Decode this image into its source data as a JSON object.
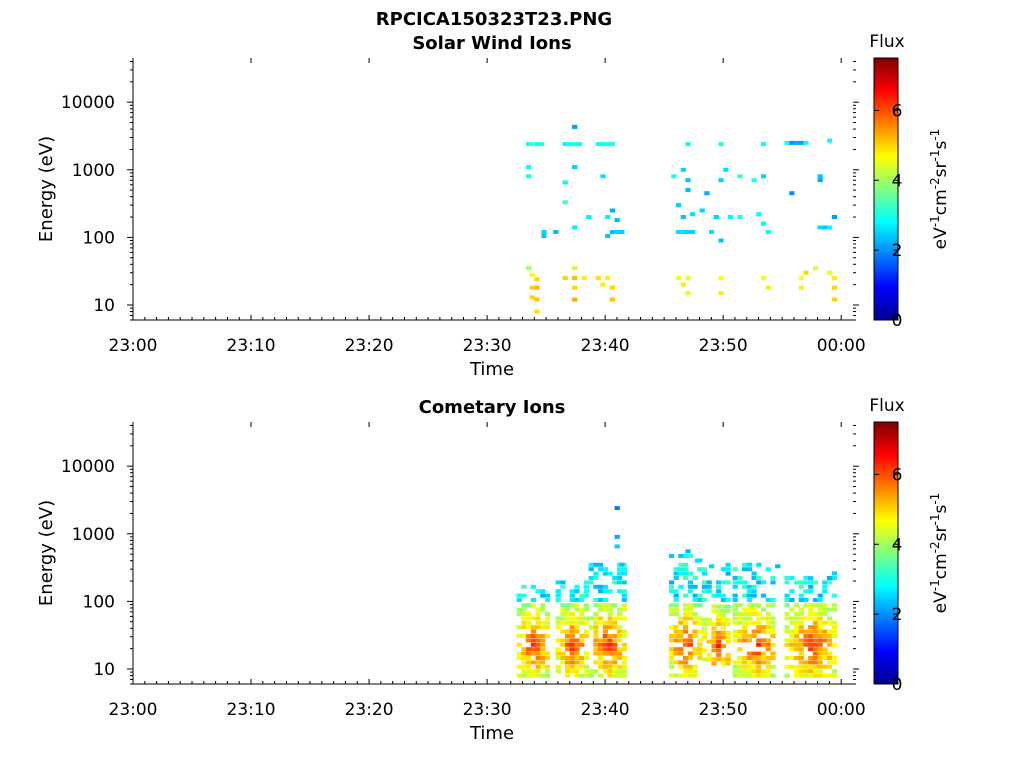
{
  "figure": {
    "title": "RPCICA150323T23.PNG"
  },
  "chart_data": [
    {
      "type": "heatmap",
      "title": "Solar Wind Ions",
      "xlabel": "Time",
      "ylabel": "Energy (eV)",
      "x_ticks": [
        "23:00",
        "23:10",
        "23:20",
        "23:30",
        "23:40",
        "23:50",
        "00:00"
      ],
      "x_range_minutes": [
        0,
        61
      ],
      "y_scale": "log",
      "y_ticks": [
        "10",
        "100",
        "1000",
        "10000"
      ],
      "y_range": [
        6,
        45000
      ],
      "colorbar": {
        "label": "Flux",
        "unit": "eV-1cm-2sr-1s-1",
        "ticks": [
          "0",
          "2",
          "4",
          "6"
        ],
        "range": [
          0,
          7.5
        ],
        "colormap": "jet"
      },
      "cells": [
        [
          33.3,
          2400,
          2.9
        ],
        [
          33.5,
          2400,
          3.2
        ],
        [
          34.0,
          2400,
          2.8
        ],
        [
          34.4,
          2400,
          3.0
        ],
        [
          33.3,
          1100,
          2.9
        ],
        [
          33.3,
          800,
          3.0
        ],
        [
          33.3,
          35,
          4.1
        ],
        [
          33.6,
          28,
          4.6
        ],
        [
          34.0,
          24,
          5.0
        ],
        [
          34.0,
          18,
          5.2
        ],
        [
          34.0,
          12,
          5.1
        ],
        [
          34.0,
          8,
          4.9
        ],
        [
          33.6,
          18,
          5.0
        ],
        [
          33.6,
          13,
          5.0
        ],
        [
          34.6,
          120,
          2.5
        ],
        [
          34.6,
          105,
          2.4
        ],
        [
          35.6,
          120,
          2.3
        ],
        [
          36.4,
          2400,
          2.8
        ],
        [
          36.8,
          2400,
          2.9
        ],
        [
          37.2,
          2400,
          3.0
        ],
        [
          37.6,
          2400,
          2.9
        ],
        [
          37.2,
          4300,
          2.1
        ],
        [
          36.4,
          650,
          2.8
        ],
        [
          36.4,
          330,
          3.2
        ],
        [
          37.2,
          1100,
          2.5
        ],
        [
          37.2,
          140,
          2.7
        ],
        [
          37.2,
          35,
          4.3
        ],
        [
          37.2,
          25,
          5.2
        ],
        [
          37.2,
          18,
          5.0
        ],
        [
          37.2,
          12,
          5.3
        ],
        [
          36.4,
          25,
          5.0
        ],
        [
          38.0,
          25,
          4.8
        ],
        [
          38.4,
          200,
          2.7
        ],
        [
          39.2,
          2400,
          2.9
        ],
        [
          39.6,
          2400,
          3.0
        ],
        [
          40.0,
          2400,
          3.0
        ],
        [
          40.4,
          2400,
          3.1
        ],
        [
          39.2,
          25,
          4.9
        ],
        [
          39.6,
          20,
          4.8
        ],
        [
          40.0,
          25,
          4.8
        ],
        [
          40.4,
          18,
          5.0
        ],
        [
          40.4,
          12,
          5.1
        ],
        [
          39.6,
          800,
          2.6
        ],
        [
          40.0,
          200,
          2.7
        ],
        [
          40.4,
          120,
          2.3
        ],
        [
          40.8,
          120,
          2.5
        ],
        [
          40.4,
          250,
          2.2
        ],
        [
          40.8,
          180,
          2.3
        ],
        [
          41.2,
          120,
          2.5
        ],
        [
          40.0,
          105,
          2.4
        ],
        [
          45.6,
          800,
          3.0
        ],
        [
          46.0,
          25,
          4.6
        ],
        [
          46.4,
          20,
          4.8
        ],
        [
          46.8,
          25,
          4.6
        ],
        [
          46.8,
          15,
          4.5
        ],
        [
          46.8,
          2400,
          2.9
        ],
        [
          46.4,
          1000,
          2.5
        ],
        [
          46.8,
          700,
          2.4
        ],
        [
          46.8,
          500,
          2.3
        ],
        [
          46.0,
          300,
          2.5
        ],
        [
          46.4,
          200,
          2.4
        ],
        [
          46.0,
          120,
          2.6
        ],
        [
          46.4,
          120,
          2.6
        ],
        [
          46.8,
          120,
          2.5
        ],
        [
          47.2,
          120,
          2.5
        ],
        [
          47.2,
          220,
          2.6
        ],
        [
          48.4,
          450,
          2.2
        ],
        [
          48.0,
          250,
          2.5
        ],
        [
          48.8,
          120,
          2.6
        ],
        [
          49.2,
          200,
          2.5
        ],
        [
          49.6,
          2400,
          3.1
        ],
        [
          49.6,
          25,
          4.7
        ],
        [
          49.6,
          15,
          4.8
        ],
        [
          49.6,
          90,
          2.4
        ],
        [
          49.6,
          700,
          2.5
        ],
        [
          50.0,
          1000,
          2.6
        ],
        [
          50.4,
          200,
          2.8
        ],
        [
          51.2,
          800,
          3.1
        ],
        [
          51.2,
          200,
          3.0
        ],
        [
          52.4,
          700,
          3.0
        ],
        [
          53.2,
          2400,
          2.9
        ],
        [
          53.2,
          25,
          4.6
        ],
        [
          53.6,
          18,
          4.8
        ],
        [
          52.8,
          220,
          2.8
        ],
        [
          53.2,
          160,
          2.8
        ],
        [
          53.6,
          120,
          2.9
        ],
        [
          53.2,
          800,
          2.5
        ],
        [
          55.2,
          2500,
          3.0
        ],
        [
          55.6,
          2500,
          2.0
        ],
        [
          56.0,
          2500,
          2.2
        ],
        [
          56.4,
          2500,
          2.1
        ],
        [
          56.8,
          2500,
          2.9
        ],
        [
          55.6,
          450,
          2.0
        ],
        [
          56.4,
          25,
          4.7
        ],
        [
          56.4,
          18,
          4.8
        ],
        [
          56.8,
          30,
          5.0
        ],
        [
          57.6,
          35,
          4.4
        ],
        [
          58.0,
          800,
          2.4
        ],
        [
          58.0,
          700,
          2.2
        ],
        [
          58.0,
          140,
          2.6
        ],
        [
          58.4,
          140,
          2.4
        ],
        [
          58.8,
          2700,
          2.8
        ],
        [
          58.8,
          140,
          2.8
        ],
        [
          58.8,
          30,
          4.6
        ],
        [
          59.2,
          25,
          4.8
        ],
        [
          59.2,
          18,
          5.0
        ],
        [
          59.2,
          12,
          5.0
        ],
        [
          59.2,
          200,
          2.1
        ]
      ]
    },
    {
      "type": "heatmap",
      "title": "Cometary Ions",
      "xlabel": "Time",
      "ylabel": "Energy (eV)",
      "x_ticks": [
        "23:00",
        "23:10",
        "23:20",
        "23:30",
        "23:40",
        "23:50",
        "00:00"
      ],
      "x_range_minutes": [
        0,
        61
      ],
      "y_scale": "log",
      "y_ticks": [
        "10",
        "100",
        "1000",
        "10000"
      ],
      "y_range": [
        6,
        45000
      ],
      "colorbar": {
        "label": "Flux",
        "unit": "eV-1cm-2sr-1s-1",
        "ticks": [
          "0",
          "2",
          "4",
          "6"
        ],
        "range": [
          0,
          7.5
        ],
        "colormap": "jet"
      },
      "bursts": [
        {
          "start": 32.5,
          "end": 35.2,
          "peak": 33.8,
          "bottom": 8,
          "high": 180
        },
        {
          "start": 35.8,
          "end": 38.2,
          "peak": 37.0,
          "bottom": 8,
          "high": 200
        },
        {
          "start": 38.6,
          "end": 41.6,
          "peak": 40.0,
          "bottom": 8,
          "high": 350
        },
        {
          "start": 45.4,
          "end": 48.0,
          "peak": 46.6,
          "bottom": 8,
          "high": 500
        },
        {
          "start": 48.2,
          "end": 50.4,
          "peak": 49.4,
          "bottom": 12,
          "high": 350
        },
        {
          "start": 50.8,
          "end": 54.0,
          "peak": 52.6,
          "bottom": 8,
          "high": 400
        },
        {
          "start": 55.2,
          "end": 59.2,
          "peak": 57.4,
          "bottom": 8,
          "high": 250
        }
      ],
      "extra_cells": [
        [
          40.8,
          2400,
          1.8
        ],
        [
          40.8,
          900,
          2.2
        ],
        [
          40.8,
          650,
          2.5
        ],
        [
          41.2,
          350,
          2.4
        ],
        [
          46.8,
          550,
          2.3
        ],
        [
          47.6,
          400,
          2.6
        ],
        [
          48.8,
          330,
          2.5
        ],
        [
          52.0,
          350,
          2.6
        ],
        [
          54.4,
          330,
          2.3
        ],
        [
          57.2,
          220,
          2.4
        ],
        [
          58.8,
          220,
          2.2
        ],
        [
          59.2,
          260,
          2.5
        ]
      ]
    }
  ]
}
